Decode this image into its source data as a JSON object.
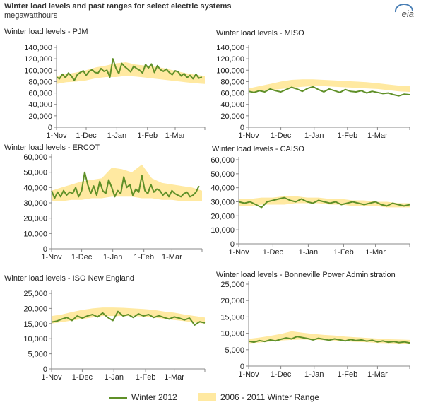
{
  "header": {
    "title": "Winter load levels and past ranges for select electric systems",
    "subtitle": "megawatthours",
    "logo_text": "eia"
  },
  "colors": {
    "series_line": "#5f9028",
    "range_fill": "#ffe9a1",
    "axis": "#888888",
    "text": "#222222"
  },
  "legend": {
    "line_label": "Winter 2012",
    "area_label": "2006 - 2011 Winter Range"
  },
  "chart_data": [
    {
      "type": "line",
      "title": "Winter load levels - PJM",
      "x_tick_labels": [
        "1-Nov",
        "1-Dec",
        "1-Jan",
        "1-Feb",
        "1-Mar"
      ],
      "x_range_days": [
        0,
        150
      ],
      "y_ticks": [
        0,
        20000,
        40000,
        60000,
        80000,
        100000,
        120000,
        140000
      ],
      "y_tick_labels": [
        "0",
        "20,000",
        "40,000",
        "60,000",
        "80,000",
        "100,000",
        "120,000",
        "140,000"
      ],
      "ylim": [
        0,
        140000
      ],
      "series": [
        {
          "name": "Winter 2012",
          "kind": "line",
          "x": [
            0,
            3,
            6,
            9,
            12,
            15,
            18,
            21,
            24,
            27,
            30,
            33,
            36,
            39,
            42,
            45,
            48,
            51,
            54,
            57,
            60,
            63,
            66,
            69,
            72,
            75,
            78,
            81,
            84,
            87,
            90,
            93,
            96,
            99,
            102,
            105,
            108,
            111,
            114,
            117,
            120,
            123,
            126,
            129,
            132,
            135,
            138,
            141,
            144,
            147
          ],
          "y": [
            88000,
            85000,
            93000,
            87000,
            95000,
            90000,
            82000,
            92000,
            96000,
            99000,
            91000,
            98000,
            101000,
            96000,
            95000,
            103000,
            98000,
            100000,
            88000,
            120000,
            104000,
            94000,
            112000,
            106000,
            102000,
            97000,
            107000,
            103000,
            100000,
            95000,
            110000,
            104000,
            111000,
            96000,
            108000,
            101000,
            98000,
            102000,
            96000,
            92000,
            99000,
            97000,
            90000,
            94000,
            87000,
            91000,
            85000,
            93000,
            86000,
            88000
          ]
        },
        {
          "name": "2006 - 2011 Winter Range",
          "kind": "range",
          "x": [
            0,
            10,
            20,
            30,
            40,
            50,
            60,
            70,
            80,
            90,
            100,
            110,
            120,
            130,
            140,
            150
          ],
          "low": [
            76000,
            79000,
            80000,
            82000,
            86000,
            88000,
            88000,
            90000,
            89000,
            87000,
            85000,
            83000,
            81000,
            79000,
            77000,
            76000
          ],
          "high": [
            90000,
            93000,
            96000,
            100000,
            105000,
            108000,
            112000,
            114000,
            110000,
            108000,
            106000,
            103000,
            99000,
            95000,
            92000,
            90000
          ]
        }
      ]
    },
    {
      "type": "line",
      "title": "Winter load levels - MISO",
      "x_tick_labels": [
        "1-Nov",
        "1-Dec",
        "1-Jan",
        "1-Feb",
        "1-Mar"
      ],
      "x_range_days": [
        0,
        150
      ],
      "y_ticks": [
        0,
        20000,
        40000,
        60000,
        80000,
        100000,
        120000,
        140000
      ],
      "y_tick_labels": [
        "0",
        "20,000",
        "40,000",
        "60,000",
        "80,000",
        "100,000",
        "120,000",
        "140,000"
      ],
      "ylim": [
        0,
        140000
      ],
      "series": [
        {
          "name": "Winter 2012",
          "kind": "line",
          "x": [
            0,
            5,
            10,
            15,
            20,
            25,
            30,
            35,
            40,
            45,
            50,
            55,
            60,
            65,
            70,
            75,
            80,
            85,
            90,
            95,
            100,
            105,
            110,
            115,
            120,
            125,
            130,
            135,
            140,
            145,
            150
          ],
          "y": [
            63000,
            61000,
            64000,
            62000,
            67000,
            64000,
            62000,
            66000,
            70000,
            67000,
            63000,
            68000,
            71000,
            66000,
            62000,
            67000,
            64000,
            61000,
            66000,
            63000,
            62000,
            64000,
            60000,
            63000,
            61000,
            59000,
            60000,
            57000,
            55000,
            58000,
            57000
          ]
        },
        {
          "name": "2006 - 2011 Winter Range",
          "kind": "range",
          "x": [
            0,
            10,
            20,
            30,
            40,
            50,
            60,
            70,
            80,
            90,
            100,
            110,
            120,
            130,
            140,
            150
          ],
          "low": [
            62000,
            63000,
            65000,
            67000,
            69000,
            71000,
            72000,
            72000,
            71000,
            70000,
            69000,
            68000,
            67000,
            65000,
            63000,
            62000
          ],
          "high": [
            68000,
            72000,
            76000,
            80000,
            83000,
            84000,
            84000,
            83000,
            82000,
            81000,
            80000,
            79000,
            77000,
            75000,
            73000,
            72000
          ]
        }
      ]
    },
    {
      "type": "line",
      "title": "Winter load levels - ERCOT",
      "x_tick_labels": [
        "1-Nov",
        "1-Dec",
        "1-Jan",
        "1-Feb",
        "1-Mar"
      ],
      "x_range_days": [
        0,
        150
      ],
      "y_ticks": [
        0,
        10000,
        20000,
        30000,
        40000,
        50000,
        60000
      ],
      "y_tick_labels": [
        "0",
        "10,000",
        "20,000",
        "30,000",
        "40,000",
        "50,000",
        "60,000"
      ],
      "ylim": [
        0,
        60000
      ],
      "series": [
        {
          "name": "Winter 2012",
          "kind": "line",
          "x": [
            0,
            3,
            6,
            9,
            12,
            15,
            18,
            21,
            24,
            27,
            30,
            33,
            36,
            39,
            42,
            45,
            48,
            51,
            54,
            57,
            60,
            63,
            66,
            69,
            72,
            75,
            78,
            81,
            84,
            87,
            90,
            93,
            96,
            99,
            102,
            105,
            108,
            111,
            114,
            117,
            120,
            123,
            126,
            129,
            132,
            135,
            138,
            141,
            144,
            147
          ],
          "y": [
            38000,
            33000,
            37000,
            34000,
            38000,
            35000,
            37000,
            36000,
            40000,
            34000,
            38000,
            50000,
            42000,
            36000,
            41000,
            35000,
            44000,
            38000,
            36000,
            45000,
            40000,
            34000,
            38000,
            36000,
            47000,
            40000,
            42000,
            35000,
            39000,
            37000,
            48000,
            38000,
            36000,
            42000,
            37000,
            39000,
            38000,
            35000,
            37000,
            34000,
            38000,
            36000,
            35000,
            34000,
            36000,
            37000,
            34000,
            35000,
            37000,
            41000
          ]
        },
        {
          "name": "2006 - 2011 Winter Range",
          "kind": "range",
          "x": [
            0,
            10,
            20,
            30,
            40,
            50,
            60,
            70,
            80,
            90,
            100,
            110,
            120,
            130,
            140,
            150
          ],
          "low": [
            31000,
            31000,
            32000,
            32000,
            33000,
            33000,
            34000,
            34000,
            34000,
            33000,
            33000,
            32000,
            32000,
            31000,
            31000,
            31000
          ],
          "high": [
            38000,
            40000,
            42000,
            44000,
            45000,
            46000,
            53000,
            52000,
            50000,
            55000,
            46000,
            43000,
            42000,
            41000,
            40000,
            38000
          ]
        }
      ]
    },
    {
      "type": "line",
      "title": "Winter load levels - CAISO",
      "x_tick_labels": [
        "1-Nov",
        "1-Dec",
        "1-Jan",
        "1-Feb",
        "1-Mar"
      ],
      "x_range_days": [
        0,
        150
      ],
      "y_ticks": [
        0,
        10000,
        20000,
        30000,
        40000,
        50000,
        60000
      ],
      "y_tick_labels": [
        "0",
        "10,000",
        "20,000",
        "30,000",
        "40,000",
        "50,000",
        "60,000"
      ],
      "ylim": [
        0,
        60000
      ],
      "series": [
        {
          "name": "Winter 2012",
          "kind": "line",
          "x": [
            0,
            5,
            10,
            15,
            20,
            25,
            30,
            35,
            40,
            45,
            50,
            55,
            60,
            65,
            70,
            75,
            80,
            85,
            90,
            95,
            100,
            105,
            110,
            115,
            120,
            125,
            130,
            135,
            140,
            145,
            150
          ],
          "y": [
            30000,
            29000,
            30000,
            28000,
            26000,
            30000,
            31000,
            32000,
            33000,
            31000,
            30000,
            32000,
            30000,
            29000,
            31000,
            30000,
            29000,
            30000,
            28000,
            29000,
            30000,
            29000,
            28000,
            29000,
            30000,
            28000,
            27000,
            29000,
            28000,
            27000,
            28000
          ]
        },
        {
          "name": "2006 - 2011 Winter Range",
          "kind": "range",
          "x": [
            0,
            10,
            20,
            30,
            40,
            50,
            60,
            70,
            80,
            90,
            100,
            110,
            120,
            130,
            140,
            150
          ],
          "low": [
            27000,
            27000,
            28000,
            28000,
            28000,
            29000,
            29000,
            29000,
            28000,
            28000,
            27000,
            27000,
            27000,
            26000,
            26000,
            26000
          ],
          "high": [
            32000,
            32000,
            33000,
            33000,
            34000,
            34000,
            33000,
            33000,
            32000,
            32000,
            31000,
            31000,
            30000,
            30000,
            29000,
            29000
          ]
        }
      ]
    },
    {
      "type": "line",
      "title": "Winter load levels - ISO New England",
      "x_tick_labels": [
        "1-Nov",
        "1-Dec",
        "1-Jan",
        "1-Feb",
        "1-Mar"
      ],
      "x_range_days": [
        0,
        150
      ],
      "y_ticks": [
        0,
        5000,
        10000,
        15000,
        20000,
        25000
      ],
      "y_tick_labels": [
        "0",
        "5,000",
        "10,000",
        "15,000",
        "20,000",
        "25,000"
      ],
      "ylim": [
        0,
        25000
      ],
      "series": [
        {
          "name": "Winter 2012",
          "kind": "line",
          "x": [
            0,
            5,
            10,
            15,
            20,
            25,
            30,
            35,
            40,
            45,
            50,
            55,
            60,
            65,
            70,
            75,
            80,
            85,
            90,
            95,
            100,
            105,
            110,
            115,
            120,
            125,
            130,
            135,
            140,
            145,
            150
          ],
          "y": [
            15500,
            15800,
            16500,
            17000,
            16000,
            17500,
            16800,
            17500,
            18000,
            17200,
            18500,
            17000,
            16000,
            19000,
            17500,
            18000,
            17000,
            18200,
            17500,
            18000,
            17000,
            17600,
            17000,
            16500,
            17200,
            16800,
            16200,
            16800,
            14500,
            15600,
            15200
          ]
        },
        {
          "name": "2006 - 2011 Winter Range",
          "kind": "range",
          "x": [
            0,
            10,
            20,
            30,
            40,
            50,
            60,
            70,
            80,
            90,
            100,
            110,
            120,
            130,
            140,
            150
          ],
          "low": [
            15000,
            15500,
            16000,
            16500,
            17000,
            17500,
            17500,
            17500,
            17500,
            17300,
            17000,
            16600,
            16200,
            15800,
            15300,
            15000
          ],
          "high": [
            17500,
            18000,
            18800,
            19500,
            20000,
            20300,
            20300,
            20200,
            20000,
            19800,
            19500,
            19000,
            18600,
            18000,
            17500,
            17000
          ]
        }
      ]
    },
    {
      "type": "line",
      "title": "Winter load levels - Bonneville Power Administration",
      "x_tick_labels": [
        "1-Nov",
        "1-Dec",
        "1-Jan",
        "1-Feb",
        "1-Mar"
      ],
      "x_range_days": [
        0,
        150
      ],
      "y_ticks": [
        0,
        5000,
        10000,
        15000,
        20000,
        25000
      ],
      "y_tick_labels": [
        "0",
        "5,000",
        "10,000",
        "15,000",
        "20,000",
        "25,000"
      ],
      "ylim": [
        0,
        25000
      ],
      "series": [
        {
          "name": "Winter 2012",
          "kind": "line",
          "x": [
            0,
            5,
            10,
            15,
            20,
            25,
            30,
            35,
            40,
            45,
            50,
            55,
            60,
            65,
            70,
            75,
            80,
            85,
            90,
            95,
            100,
            105,
            110,
            115,
            120,
            125,
            130,
            135,
            140,
            145,
            150
          ],
          "y": [
            7600,
            7300,
            7800,
            7500,
            8000,
            7700,
            8200,
            8600,
            8300,
            9000,
            8700,
            8400,
            8000,
            8500,
            8200,
            7900,
            8300,
            8000,
            7700,
            8100,
            7800,
            8000,
            7600,
            7900,
            7400,
            7700,
            7300,
            7500,
            7200,
            7400,
            7100
          ]
        },
        {
          "name": "2006 - 2011 Winter Range",
          "kind": "range",
          "x": [
            0,
            10,
            20,
            30,
            40,
            50,
            60,
            70,
            80,
            90,
            100,
            110,
            120,
            130,
            140,
            150
          ],
          "low": [
            7000,
            7200,
            7500,
            7800,
            8000,
            8100,
            8000,
            7900,
            7800,
            7600,
            7400,
            7300,
            7100,
            7000,
            6900,
            6800
          ],
          "high": [
            8300,
            8700,
            9200,
            9800,
            10600,
            10200,
            9800,
            9500,
            9300,
            9000,
            8800,
            8600,
            8400,
            8200,
            8100,
            8000
          ]
        }
      ]
    }
  ]
}
